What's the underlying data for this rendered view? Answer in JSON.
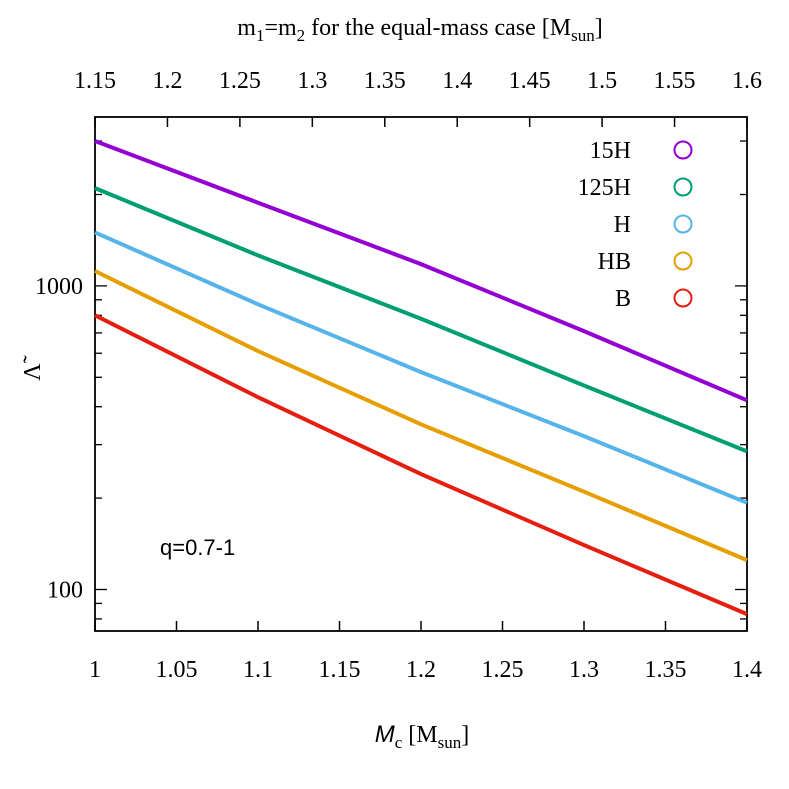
{
  "chart_data": {
    "type": "line",
    "x": [
      1.0,
      1.1,
      1.2,
      1.3,
      1.4
    ],
    "xlim": [
      1.0,
      1.4
    ],
    "ylim": [
      73,
      3600
    ],
    "yscale": "log",
    "grid": false,
    "legend_position": "top-right",
    "xlabel": "M_c [M_sun]",
    "xlabel_main": "M",
    "xlabel_sub": "c",
    "xlabel_unit_pre": " [M",
    "xlabel_unit_sub": "sun",
    "xlabel_unit_post": "]",
    "ylabel": "Λ̃",
    "top_xlabel": "m1=m2 for the equal-mass case [Msun]",
    "top_xlabel_parts": {
      "m": "m",
      "sub1": "1",
      "eq": "=m",
      "sub2": "2",
      "rest": " for the equal-mass case [M",
      "sub3": "sun",
      "end": "]"
    },
    "x_ticks": [
      "1",
      "1.05",
      "1.1",
      "1.15",
      "1.2",
      "1.25",
      "1.3",
      "1.35",
      "1.4"
    ],
    "x_tick_values": [
      1.0,
      1.05,
      1.1,
      1.15,
      1.2,
      1.25,
      1.3,
      1.35,
      1.4
    ],
    "top_ticks": [
      "1.15",
      "1.2",
      "1.25",
      "1.3",
      "1.35",
      "1.4",
      "1.45",
      "1.5",
      "1.55",
      "1.6"
    ],
    "top_tick_values": [
      1.15,
      1.2,
      1.25,
      1.3,
      1.35,
      1.4,
      1.45,
      1.5,
      1.55,
      1.6
    ],
    "top_xlim": [
      1.15,
      1.6
    ],
    "y_ticks": [
      "100",
      "1000"
    ],
    "y_tick_values": [
      100,
      1000
    ],
    "annotation": "q=0.7-1",
    "series": [
      {
        "name": "15H",
        "color": "#9400d3",
        "values": [
          3000,
          1880,
          1180,
          710,
          420
        ]
      },
      {
        "name": "125H",
        "color": "#009e73",
        "values": [
          2100,
          1260,
          780,
          470,
          285
        ]
      },
      {
        "name": "H",
        "color": "#56b4e9",
        "values": [
          1500,
          870,
          520,
          320,
          193
        ]
      },
      {
        "name": "HB",
        "color": "#e69f00",
        "values": [
          1120,
          610,
          350,
          210,
          125
        ]
      },
      {
        "name": "B",
        "color": "#e51e10",
        "values": [
          800,
          430,
          240,
          140,
          83
        ]
      }
    ]
  }
}
